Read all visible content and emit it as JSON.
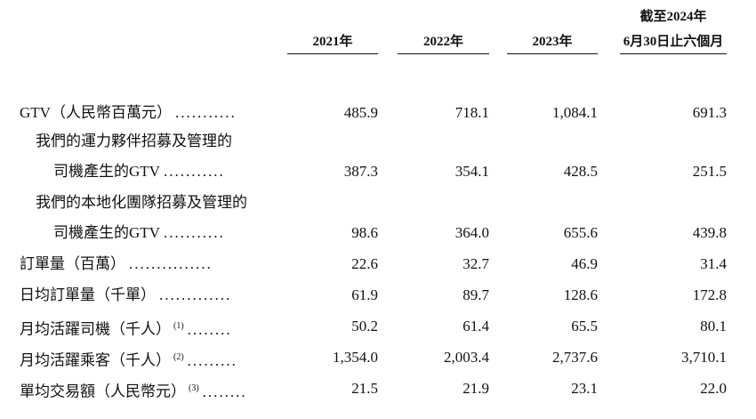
{
  "header": {
    "columns": [
      [
        "2021年"
      ],
      [
        "2022年"
      ],
      [
        "2023年"
      ],
      [
        "截至2024年",
        "6月30日止六個月"
      ]
    ]
  },
  "table": {
    "rows": [
      {
        "label": [
          "GTV（人民幣百萬元）"
        ],
        "leader": "...........",
        "values": [
          "485.9",
          "718.1",
          "1,084.1",
          "691.3"
        ]
      },
      {
        "label": [
          "我們的運力夥伴招募及管理的",
          "司機產生的GTV"
        ],
        "leader": "...........",
        "values": [
          "387.3",
          "354.1",
          "428.5",
          "251.5"
        ]
      },
      {
        "label": [
          "我們的本地化團隊招募及管理的",
          "司機產生的GTV"
        ],
        "leader": "...........",
        "values": [
          "98.6",
          "364.0",
          "655.6",
          "439.8"
        ]
      },
      {
        "label": [
          "訂單量（百萬）"
        ],
        "leader": "...............",
        "values": [
          "22.6",
          "32.7",
          "46.9",
          "31.4"
        ]
      },
      {
        "label": [
          "日均訂單量（千單）"
        ],
        "leader": ".............",
        "values": [
          "61.9",
          "89.7",
          "128.6",
          "172.8"
        ]
      },
      {
        "label": [
          "月均活躍司機（千人）"
        ],
        "note": "(1)",
        "leader": "........",
        "values": [
          "50.2",
          "61.4",
          "65.5",
          "80.1"
        ]
      },
      {
        "label": [
          "月均活躍乘客（千人）"
        ],
        "note": "(2)",
        "leader": ".........",
        "values": [
          "1,354.0",
          "2,003.4",
          "2,737.6",
          "3,710.1"
        ]
      },
      {
        "label": [
          "單均交易額（人民幣元）"
        ],
        "note": "(3)",
        "leader": "........",
        "values": [
          "21.5",
          "21.9",
          "23.1",
          "22.0"
        ]
      }
    ]
  }
}
